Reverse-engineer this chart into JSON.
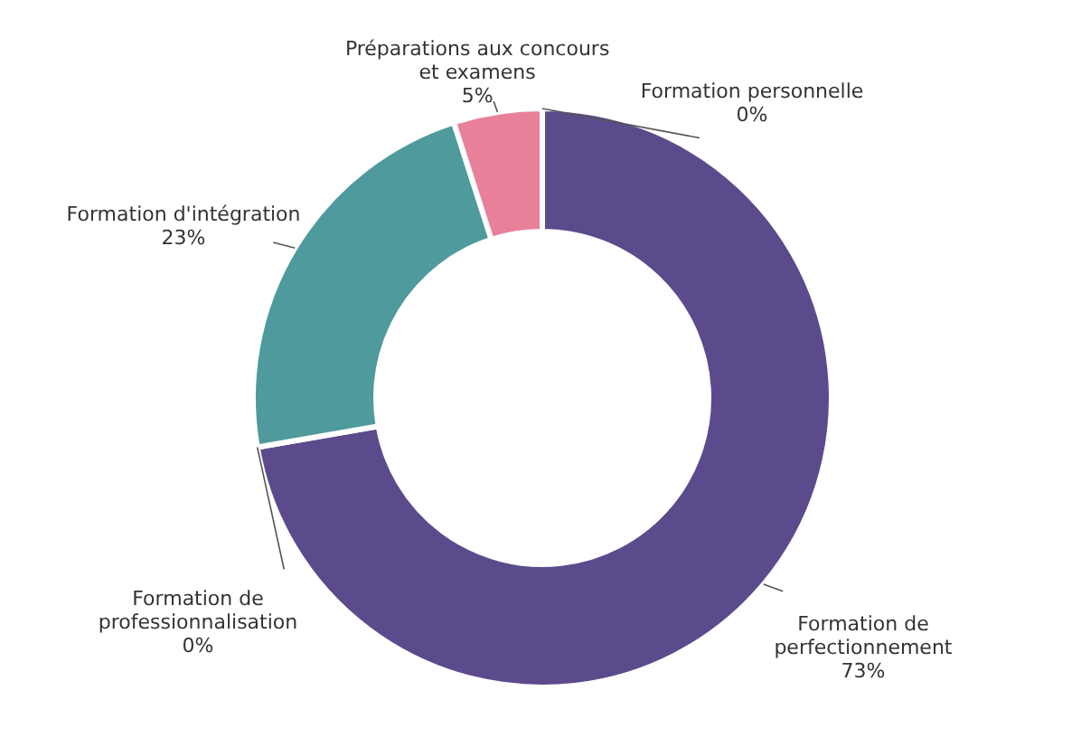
{
  "chart_data": {
    "type": "donut",
    "categories": [
      "Formation personnelle",
      "Formation de perfectionnement",
      "Formation de professionnalisation",
      "Formation d'intégration",
      "Préparations aux concours et examens"
    ],
    "values": [
      0,
      73,
      0,
      23,
      5
    ],
    "value_labels": [
      "0%",
      "73%",
      "0%",
      "23%",
      "5%"
    ],
    "colors": [
      "#6a5a8e",
      "#5b4b8c",
      "#5a4a8a",
      "#4e9a9c",
      "#e8809a"
    ],
    "legend": false
  }
}
